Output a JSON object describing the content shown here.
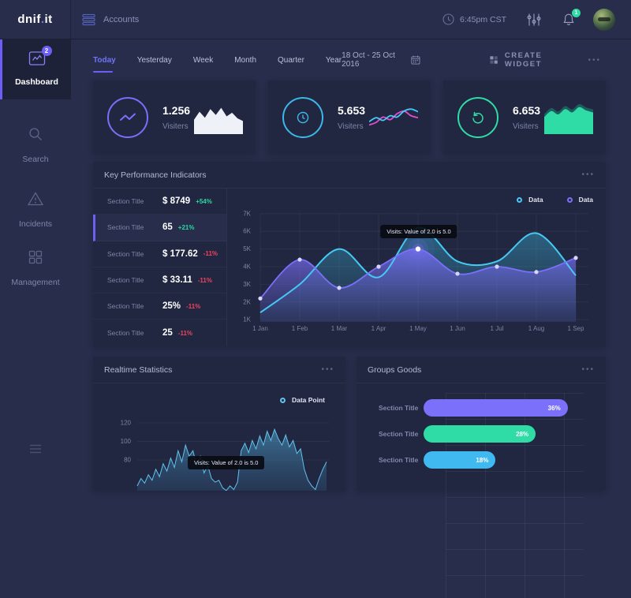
{
  "theme": {
    "accent": "#6f63fa",
    "cyan": "#45c9f5",
    "green": "#2fdca6",
    "magenta": "#e24ed2",
    "red": "#f0435f",
    "delta_green": "#2bd9a2"
  },
  "brand": {
    "name_left": "dnif",
    "name_dot": ".",
    "name_right": "it"
  },
  "topbar": {
    "nav_label": "Accounts",
    "time": "6:45pm CST",
    "notifications": "1"
  },
  "sidebar": {
    "items": [
      {
        "label": "Dashboard",
        "badge": "2"
      },
      {
        "label": "Search"
      },
      {
        "label": "Incidents"
      },
      {
        "label": "Management"
      }
    ]
  },
  "filters": {
    "tabs": [
      "Today",
      "Yesterday",
      "Week",
      "Month",
      "Quarter",
      "Year"
    ],
    "active_tab": "Today",
    "date_range": "18 Oct - 25 Oct 2016",
    "create_widget": "CREATE WIDGET",
    "menu": "•••"
  },
  "stat_cards": [
    {
      "value": "1.256",
      "label": "Visiters",
      "icon": "trend-icon",
      "accent": "#7a6ffa"
    },
    {
      "value": "5.653",
      "label": "Visiters",
      "icon": "clock-icon",
      "accent": "#3cb8e8"
    },
    {
      "value": "6.653",
      "label": "Visiters",
      "icon": "refresh-icon",
      "accent": "#2fdca6"
    }
  ],
  "kpi": {
    "title": "Key Performance Indicators",
    "menu": "•••",
    "rows": [
      {
        "label": "Section Title",
        "value": "$ 8749",
        "delta": "+54%",
        "active": false
      },
      {
        "label": "Section Title",
        "value": "65",
        "delta": "+21%",
        "active": true
      },
      {
        "label": "Section Title",
        "value": "$ 177.62",
        "delta": "-11%",
        "active": false
      },
      {
        "label": "Section Title",
        "value": "$ 33.11",
        "delta": "-11%",
        "active": false
      },
      {
        "label": "Section Title",
        "value": "25%",
        "delta": "-11%",
        "active": false
      },
      {
        "label": "Section Title",
        "value": "25",
        "delta": "-11%",
        "active": false
      }
    ]
  },
  "panels": {
    "realtime_title": "Realtime Statistics",
    "realtime_menu": "•••",
    "groups_title": "Groups Goods",
    "groups_menu": "•••"
  },
  "chart_data": [
    {
      "id": "kpi_trend",
      "type": "line",
      "title": "Key Performance Indicators",
      "x": [
        "1 Jan",
        "1 Feb",
        "1 Mar",
        "1 Apr",
        "1 May",
        "1 Jun",
        "1 Jul",
        "1 Aug",
        "1 Sep"
      ],
      "yticks": [
        "7K",
        "6K",
        "5K",
        "4K",
        "3K",
        "2K",
        "1K"
      ],
      "ylim": [
        1000,
        7000
      ],
      "grid": true,
      "legend_position": "top-right",
      "series": [
        {
          "name": "Data",
          "color": "#45c9f5",
          "values": [
            1400,
            3000,
            5000,
            3400,
            6200,
            4300,
            4300,
            5900,
            3500
          ],
          "markers": false
        },
        {
          "name": "Data",
          "color": "#7a70fa",
          "values": [
            2200,
            4400,
            2800,
            4000,
            5000,
            3600,
            4000,
            3700,
            4500
          ],
          "markers": true
        }
      ],
      "tooltip": {
        "text": "Visits: Value of 2.0 is 5.0",
        "x": "1 May",
        "series": 1,
        "value": 5000
      }
    },
    {
      "id": "realtime",
      "type": "area",
      "title": "Realtime Statistics",
      "legend": [
        "Data Point"
      ],
      "yticks": [
        120,
        100,
        80
      ],
      "ylim": [
        40,
        130
      ],
      "color": "#5fc4ee",
      "values": [
        52,
        60,
        55,
        64,
        58,
        70,
        62,
        76,
        68,
        82,
        72,
        90,
        78,
        96,
        84,
        90,
        74,
        84,
        66,
        74,
        60,
        56,
        58,
        50,
        47,
        52,
        48,
        56,
        90,
        98,
        88,
        101,
        92,
        106,
        96,
        111,
        101,
        113,
        103,
        96,
        107,
        94,
        101,
        87,
        92,
        70,
        58,
        52,
        48,
        60,
        70,
        78
      ],
      "tooltip": {
        "text": "Visits: Value of 2.0 is 5.0"
      }
    },
    {
      "id": "groups",
      "type": "bar",
      "title": "Groups Goods",
      "categories": [
        "Section Title",
        "Section Title",
        "Section Title"
      ],
      "values": [
        36,
        28,
        18
      ],
      "labels": [
        "36%",
        "28%",
        "18%"
      ],
      "colors": [
        "#7a70fa",
        "#2fdca6",
        "#3fb9f0"
      ],
      "xlim": [
        0,
        40
      ],
      "grid": true
    },
    {
      "id": "spark_visitors_1",
      "type": "sparkline",
      "style": "area-white",
      "color": "#eef1f8",
      "values": [
        34,
        58,
        40,
        66,
        48,
        70,
        44,
        55,
        38,
        30
      ]
    },
    {
      "id": "spark_visitors_2",
      "type": "sparkline",
      "style": "dual-line",
      "colors": [
        "#45c9f5",
        "#e24ed2"
      ],
      "values": [
        28,
        40,
        32,
        46,
        42,
        60,
        66,
        58
      ],
      "values2": [
        18,
        26,
        42,
        34,
        52,
        60,
        46,
        40
      ]
    },
    {
      "id": "spark_visitors_3",
      "type": "sparkline",
      "style": "area-green",
      "color": "#2fdca6",
      "color2": "rgba(26,140,122,0.55)",
      "values": [
        42,
        60,
        50,
        66,
        56,
        72,
        62,
        56
      ]
    }
  ]
}
